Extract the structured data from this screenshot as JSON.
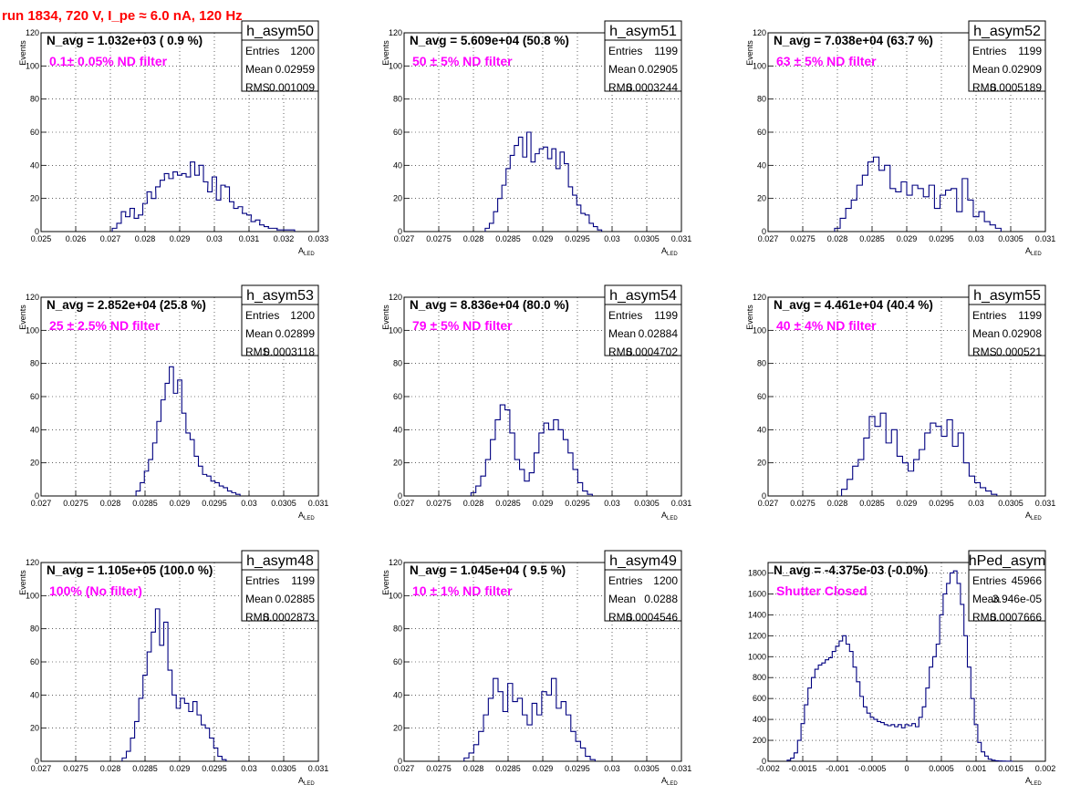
{
  "title": "run 1834,   720 V, I_pe ≈ 6.0 nA, 120 Hz",
  "colors": {
    "histogram": "#000080",
    "filter_text": "#ff00ff",
    "title": "#ff0000",
    "grid": "#000000"
  },
  "chart_data": [
    {
      "type": "histogram",
      "name": "h_asym50",
      "n_avg": "N_avg = 1.032e+03 ( 0.9 %)",
      "filter": "0.1± 0.05% ND filter",
      "stats": [
        {
          "label": "Entries",
          "value": "1200"
        },
        {
          "label": "Mean",
          "value": "0.02959"
        },
        {
          "label": "RMS",
          "value": "0.001009"
        }
      ],
      "xlim": [
        0.025,
        0.033
      ],
      "ylim": [
        0,
        120
      ],
      "xticks": [
        "0.025",
        "0.026",
        "0.027",
        "0.028",
        "0.029",
        "0.03",
        "0.031",
        "0.032",
        "0.033"
      ],
      "yticks": [
        "0",
        "20",
        "40",
        "60",
        "80",
        "100",
        "120"
      ],
      "xlabel": "A",
      "xlabel_sub": "LED",
      "ylabel": "Events",
      "x": [
        0.02712,
        0.02725,
        0.02738,
        0.0275,
        0.02763,
        0.02775,
        0.02787,
        0.028,
        0.02812,
        0.02825,
        0.02837,
        0.0285,
        0.02862,
        0.02875,
        0.02887,
        0.029,
        0.02912,
        0.02925,
        0.02937,
        0.0295,
        0.02962,
        0.02975,
        0.02987,
        0.03,
        0.03012,
        0.03025,
        0.03037,
        0.0305,
        0.03062,
        0.03075,
        0.03087,
        0.031,
        0.03112,
        0.03125,
        0.03137,
        0.0315,
        0.03162,
        0.03175,
        0.03187,
        0.032,
        0.03212,
        0.03225
      ],
      "values": [
        2,
        5,
        12,
        9,
        14,
        8,
        10,
        17,
        24,
        20,
        27,
        31,
        35,
        32,
        36,
        34,
        35,
        33,
        42,
        34,
        40,
        30,
        24,
        33,
        19,
        28,
        27,
        18,
        14,
        15,
        11,
        10,
        6,
        7,
        4,
        3,
        2,
        2,
        1,
        1,
        1,
        1
      ]
    },
    {
      "type": "histogram",
      "name": "h_asym51",
      "n_avg": "N_avg = 5.609e+04 (50.8 %)",
      "filter": "50 ± 5% ND filter",
      "stats": [
        {
          "label": "Entries",
          "value": "1199"
        },
        {
          "label": "Mean",
          "value": "0.02905"
        },
        {
          "label": "RMS",
          "value": "0.0003244"
        }
      ],
      "xlim": [
        0.027,
        0.031
      ],
      "ylim": [
        0,
        120
      ],
      "xticks": [
        "0.027",
        "0.0275",
        "0.028",
        "0.0285",
        "0.029",
        "0.0295",
        "0.03",
        "0.0305",
        "0.031"
      ],
      "yticks": [
        "0",
        "20",
        "40",
        "60",
        "80",
        "100",
        "120"
      ],
      "xlabel": "A",
      "xlabel_sub": "LED",
      "ylabel": "Events",
      "x": [
        0.0282,
        0.02826,
        0.02832,
        0.02838,
        0.02844,
        0.0285,
        0.02856,
        0.02862,
        0.02868,
        0.02874,
        0.0288,
        0.02886,
        0.02892,
        0.02898,
        0.02904,
        0.0291,
        0.02916,
        0.02922,
        0.02928,
        0.02934,
        0.0294,
        0.02946,
        0.02952,
        0.02958,
        0.02964,
        0.0297,
        0.02976,
        0.02982
      ],
      "values": [
        2,
        5,
        12,
        20,
        28,
        38,
        46,
        52,
        57,
        45,
        60,
        42,
        47,
        50,
        51,
        44,
        50,
        38,
        48,
        41,
        27,
        22,
        16,
        11,
        10,
        5,
        3,
        1
      ]
    },
    {
      "type": "histogram",
      "name": "h_asym52",
      "n_avg": "N_avg = 7.038e+04 (63.7 %)",
      "filter": "63 ± 5% ND filter",
      "stats": [
        {
          "label": "Entries",
          "value": "1199"
        },
        {
          "label": "Mean",
          "value": "0.02909"
        },
        {
          "label": "RMS",
          "value": "0.0005189"
        }
      ],
      "xlim": [
        0.027,
        0.031
      ],
      "ylim": [
        0,
        120
      ],
      "xticks": [
        "0.027",
        "0.0275",
        "0.028",
        "0.0285",
        "0.029",
        "0.0295",
        "0.03",
        "0.0305",
        "0.031"
      ],
      "yticks": [
        "0",
        "20",
        "40",
        "60",
        "80",
        "100",
        "120"
      ],
      "xlabel": "A",
      "xlabel_sub": "LED",
      "ylabel": "Events",
      "x": [
        0.028,
        0.02808,
        0.02816,
        0.02824,
        0.02832,
        0.0284,
        0.02848,
        0.02856,
        0.02864,
        0.02872,
        0.0288,
        0.02888,
        0.02896,
        0.02904,
        0.02912,
        0.0292,
        0.02928,
        0.02936,
        0.02944,
        0.02952,
        0.0296,
        0.02968,
        0.02976,
        0.02984,
        0.02992,
        0.03,
        0.03008,
        0.03016,
        0.03024,
        0.03032
      ],
      "values": [
        2,
        8,
        14,
        19,
        28,
        34,
        42,
        45,
        37,
        40,
        26,
        24,
        30,
        22,
        28,
        26,
        21,
        28,
        14,
        22,
        25,
        26,
        12,
        32,
        19,
        9,
        12,
        6,
        4,
        2
      ]
    },
    {
      "type": "histogram",
      "name": "h_asym53",
      "n_avg": "N_avg = 2.852e+04 (25.8 %)",
      "filter": "25 ± 2.5% ND filter",
      "stats": [
        {
          "label": "Entries",
          "value": "1200"
        },
        {
          "label": "Mean",
          "value": "0.02899"
        },
        {
          "label": "RMS",
          "value": "0.0003118"
        }
      ],
      "xlim": [
        0.027,
        0.031
      ],
      "ylim": [
        0,
        120
      ],
      "xticks": [
        "0.027",
        "0.0275",
        "0.028",
        "0.0285",
        "0.029",
        "0.0295",
        "0.03",
        "0.0305",
        "0.031"
      ],
      "yticks": [
        "0",
        "20",
        "40",
        "60",
        "80",
        "100",
        "120"
      ],
      "xlabel": "A",
      "xlabel_sub": "LED",
      "ylabel": "Events",
      "x": [
        0.0284,
        0.02846,
        0.02852,
        0.02858,
        0.02864,
        0.0287,
        0.02876,
        0.02882,
        0.02888,
        0.02894,
        0.029,
        0.02906,
        0.02912,
        0.02918,
        0.02924,
        0.0293,
        0.02936,
        0.02942,
        0.02948,
        0.02954,
        0.0296,
        0.02966,
        0.02972,
        0.02978,
        0.02984
      ],
      "values": [
        3,
        8,
        15,
        22,
        32,
        45,
        58,
        68,
        78,
        62,
        70,
        50,
        38,
        34,
        24,
        18,
        13,
        12,
        9,
        8,
        6,
        5,
        3,
        2,
        1
      ]
    },
    {
      "type": "histogram",
      "name": "h_asym54",
      "n_avg": "N_avg = 8.836e+04 (80.0 %)",
      "filter": "79 ± 5% ND filter",
      "stats": [
        {
          "label": "Entries",
          "value": "1199"
        },
        {
          "label": "Mean",
          "value": "0.02884"
        },
        {
          "label": "RMS",
          "value": "0.0004702"
        }
      ],
      "xlim": [
        0.027,
        0.031
      ],
      "ylim": [
        0,
        120
      ],
      "xticks": [
        "0.027",
        "0.0275",
        "0.028",
        "0.0285",
        "0.029",
        "0.0295",
        "0.03",
        "0.0305",
        "0.031"
      ],
      "yticks": [
        "0",
        "20",
        "40",
        "60",
        "80",
        "100",
        "120"
      ],
      "xlabel": "A",
      "xlabel_sub": "LED",
      "ylabel": "Events",
      "x": [
        0.028,
        0.02807,
        0.02814,
        0.02821,
        0.02828,
        0.02835,
        0.02842,
        0.02849,
        0.02856,
        0.02863,
        0.0287,
        0.02877,
        0.02884,
        0.02891,
        0.02898,
        0.02905,
        0.02912,
        0.02919,
        0.02926,
        0.02933,
        0.0294,
        0.02947,
        0.02954,
        0.02961,
        0.02968
      ],
      "values": [
        2,
        6,
        12,
        22,
        34,
        46,
        55,
        52,
        38,
        22,
        16,
        9,
        14,
        26,
        38,
        44,
        40,
        46,
        40,
        34,
        26,
        16,
        8,
        3,
        1
      ]
    },
    {
      "type": "histogram",
      "name": "h_asym55",
      "n_avg": "N_avg = 4.461e+04 (40.4 %)",
      "filter": "40 ± 4% ND filter",
      "stats": [
        {
          "label": "Entries",
          "value": "1199"
        },
        {
          "label": "Mean",
          "value": "0.02908"
        },
        {
          "label": "RMS",
          "value": "0.000521"
        }
      ],
      "xlim": [
        0.027,
        0.031
      ],
      "ylim": [
        0,
        120
      ],
      "xticks": [
        "0.027",
        "0.0275",
        "0.028",
        "0.0285",
        "0.029",
        "0.0295",
        "0.03",
        "0.0305",
        "0.031"
      ],
      "yticks": [
        "0",
        "20",
        "40",
        "60",
        "80",
        "100",
        "120"
      ],
      "xlabel": "A",
      "xlabel_sub": "LED",
      "ylabel": "Events",
      "x": [
        0.0281,
        0.02818,
        0.02826,
        0.02834,
        0.02842,
        0.0285,
        0.02858,
        0.02866,
        0.02874,
        0.02882,
        0.0289,
        0.02898,
        0.02906,
        0.02914,
        0.02922,
        0.0293,
        0.02938,
        0.02946,
        0.02954,
        0.02962,
        0.0297,
        0.02978,
        0.02986,
        0.02994,
        0.03002,
        0.0301,
        0.03018,
        0.03026
      ],
      "values": [
        4,
        10,
        18,
        22,
        35,
        48,
        42,
        50,
        32,
        40,
        24,
        20,
        15,
        22,
        28,
        38,
        44,
        42,
        36,
        46,
        30,
        38,
        20,
        12,
        8,
        5,
        3,
        1
      ]
    },
    {
      "type": "histogram",
      "name": "h_asym48",
      "n_avg": "N_avg = 1.105e+05 (100.0 %)",
      "filter": "100% (No filter)",
      "stats": [
        {
          "label": "Entries",
          "value": "1199"
        },
        {
          "label": "Mean",
          "value": "0.02885"
        },
        {
          "label": "RMS",
          "value": "0.0002873"
        }
      ],
      "xlim": [
        0.027,
        0.031
      ],
      "ylim": [
        0,
        120
      ],
      "xticks": [
        "0.027",
        "0.0275",
        "0.028",
        "0.0285",
        "0.029",
        "0.0295",
        "0.03",
        "0.0305",
        "0.031"
      ],
      "yticks": [
        "0",
        "20",
        "40",
        "60",
        "80",
        "100",
        "120"
      ],
      "xlabel": "A",
      "xlabel_sub": "LED",
      "ylabel": "Events",
      "x": [
        0.0282,
        0.02826,
        0.02832,
        0.02838,
        0.02844,
        0.0285,
        0.02856,
        0.02862,
        0.02868,
        0.02874,
        0.0288,
        0.02886,
        0.02892,
        0.02898,
        0.02904,
        0.0291,
        0.02916,
        0.02922,
        0.02928,
        0.02934,
        0.0294,
        0.02946,
        0.02952,
        0.02958,
        0.02964
      ],
      "values": [
        2,
        6,
        14,
        24,
        38,
        52,
        66,
        78,
        92,
        70,
        84,
        55,
        40,
        32,
        38,
        35,
        30,
        36,
        28,
        22,
        20,
        14,
        8,
        3,
        1
      ]
    },
    {
      "type": "histogram",
      "name": "h_asym49",
      "n_avg": "N_avg = 1.045e+04 ( 9.5 %)",
      "filter": "10 ± 1% ND filter",
      "stats": [
        {
          "label": "Entries",
          "value": "1200"
        },
        {
          "label": "Mean",
          "value": "0.0288"
        },
        {
          "label": "RMS",
          "value": "0.0004546"
        }
      ],
      "xlim": [
        0.027,
        0.031
      ],
      "ylim": [
        0,
        120
      ],
      "xticks": [
        "0.027",
        "0.0275",
        "0.028",
        "0.0285",
        "0.029",
        "0.0295",
        "0.03",
        "0.0305",
        "0.031"
      ],
      "yticks": [
        "0",
        "20",
        "40",
        "60",
        "80",
        "100",
        "120"
      ],
      "xlabel": "A",
      "xlabel_sub": "LED",
      "ylabel": "Events",
      "x": [
        0.0279,
        0.02797,
        0.02804,
        0.02811,
        0.02818,
        0.02825,
        0.02832,
        0.02839,
        0.02846,
        0.02853,
        0.0286,
        0.02867,
        0.02874,
        0.02881,
        0.02888,
        0.02895,
        0.02902,
        0.02909,
        0.02916,
        0.02923,
        0.0293,
        0.02937,
        0.02944,
        0.02951,
        0.02958,
        0.02965,
        0.02972
      ],
      "values": [
        2,
        5,
        10,
        18,
        28,
        38,
        50,
        42,
        30,
        47,
        36,
        38,
        28,
        22,
        35,
        28,
        42,
        40,
        50,
        32,
        36,
        28,
        18,
        12,
        8,
        3,
        1
      ]
    },
    {
      "type": "histogram",
      "name": "hPed_asym",
      "n_avg": "N_avg = -4.375e-03 (-0.0%)",
      "filter": "Shutter Closed",
      "stats": [
        {
          "label": "Entries",
          "value": "45966"
        },
        {
          "label": "Mean",
          "value": "3.946e-05"
        },
        {
          "label": "RMS",
          "value": "0.0007666"
        }
      ],
      "xlim": [
        -0.002,
        0.002
      ],
      "ylim": [
        0,
        1900
      ],
      "xticks": [
        "-0.002",
        "-0.0015",
        "-0.001",
        "-0.0005",
        "0",
        "0.0005",
        "0.001",
        "0.0015",
        "0.002"
      ],
      "yticks": [
        "0",
        "200",
        "400",
        "600",
        "800",
        "1000",
        "1200",
        "1400",
        "1600",
        "1800"
      ],
      "xlabel": "A",
      "xlabel_sub": "LED",
      "ylabel": "",
      "x": [
        -0.0017,
        -0.00165,
        -0.0016,
        -0.00155,
        -0.0015,
        -0.00145,
        -0.0014,
        -0.00135,
        -0.0013,
        -0.00125,
        -0.0012,
        -0.00115,
        -0.0011,
        -0.00105,
        -0.001,
        -0.00095,
        -0.0009,
        -0.00085,
        -0.0008,
        -0.00075,
        -0.0007,
        -0.00065,
        -0.0006,
        -0.00055,
        -0.0005,
        -0.00045,
        -0.0004,
        -0.00035,
        -0.0003,
        -0.00025,
        -0.0002,
        -0.00015,
        -0.0001,
        -5e-05,
        0.0,
        5e-05,
        0.0001,
        0.00015,
        0.0002,
        0.00025,
        0.0003,
        0.00035,
        0.0004,
        0.00045,
        0.0005,
        0.00055,
        0.0006,
        0.00065,
        0.0007,
        0.00075,
        0.0008,
        0.00085,
        0.0009,
        0.00095,
        0.001,
        0.00105,
        0.0011,
        0.00115,
        0.0012,
        0.00125,
        0.0013,
        0.00135,
        0.0014,
        0.00145,
        0.0015
      ],
      "values": [
        10,
        30,
        80,
        200,
        360,
        540,
        700,
        800,
        880,
        920,
        940,
        970,
        990,
        1050,
        1100,
        1150,
        1200,
        1120,
        1050,
        900,
        760,
        620,
        520,
        460,
        420,
        400,
        380,
        370,
        350,
        340,
        350,
        330,
        350,
        320,
        350,
        340,
        360,
        330,
        420,
        520,
        700,
        900,
        1000,
        1120,
        1400,
        1600,
        1700,
        1800,
        1820,
        1700,
        1500,
        1200,
        900,
        600,
        350,
        180,
        90,
        50,
        20,
        10,
        5,
        3,
        2,
        1,
        1
      ]
    }
  ]
}
